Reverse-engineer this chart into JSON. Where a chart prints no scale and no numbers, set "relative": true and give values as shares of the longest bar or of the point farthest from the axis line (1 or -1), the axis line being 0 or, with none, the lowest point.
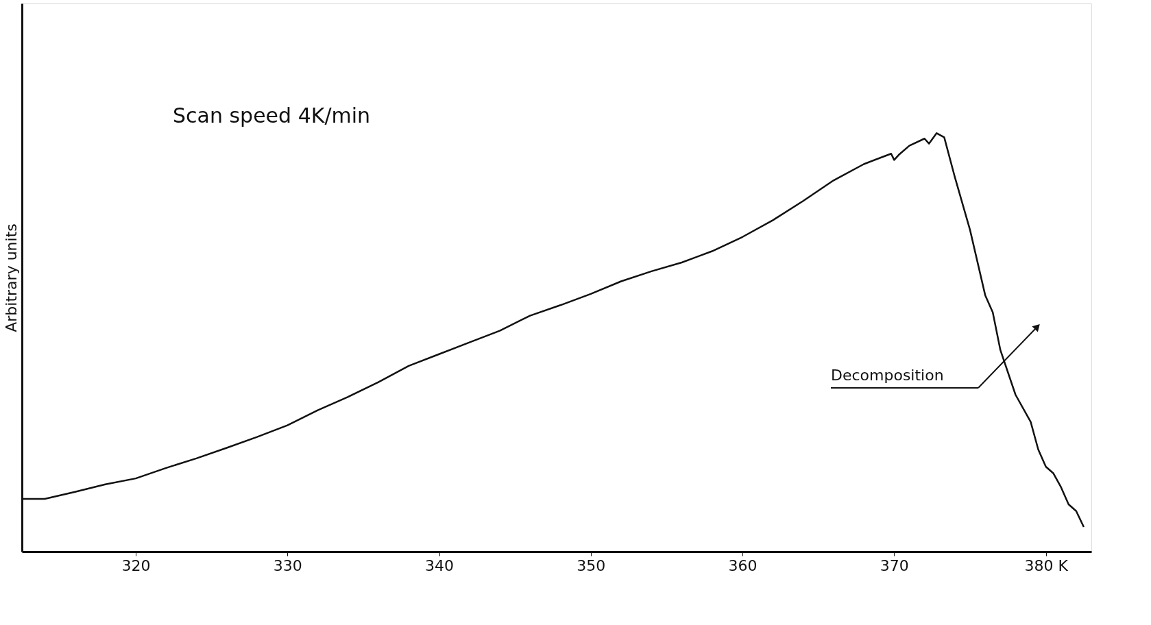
{
  "chart_data": {
    "type": "line",
    "relative": true,
    "ylabel": "Arbitrary units",
    "grid": false,
    "marker": "none",
    "line_style": "solid",
    "xlim": [
      312.5,
      383
    ],
    "xticks": [
      320,
      330,
      340,
      350,
      360,
      370,
      {
        "value": 380,
        "label": "380 K"
      }
    ],
    "x": [
      312.5,
      314,
      316,
      318,
      320,
      322,
      324,
      326,
      328,
      330,
      332,
      334,
      336,
      338,
      340,
      342,
      344,
      346,
      348,
      350,
      352,
      354,
      356,
      358,
      360,
      362,
      364,
      366,
      368,
      369.8,
      370.0,
      370.3,
      371,
      372,
      372.3,
      372.8,
      373.3,
      374,
      375,
      376,
      376.5,
      377,
      378,
      379,
      379.5,
      380,
      380.5,
      381,
      381.5,
      382,
      382.5
    ],
    "series": [
      {
        "color": "#111111",
        "values": [
          0.126,
          0.126,
          0.143,
          0.161,
          0.175,
          0.2,
          0.223,
          0.248,
          0.274,
          0.302,
          0.338,
          0.37,
          0.405,
          0.444,
          0.472,
          0.5,
          0.528,
          0.564,
          0.589,
          0.616,
          0.646,
          0.67,
          0.691,
          0.718,
          0.752,
          0.792,
          0.838,
          0.887,
          0.926,
          0.951,
          0.936,
          0.948,
          0.97,
          0.987,
          0.975,
          1.0,
          0.99,
          0.895,
          0.769,
          0.613,
          0.572,
          0.482,
          0.375,
          0.31,
          0.244,
          0.203,
          0.187,
          0.154,
          0.113,
          0.097,
          0.059
        ]
      }
    ],
    "annotations": [
      "Scan speed    4K/min",
      "Decomposition"
    ]
  }
}
